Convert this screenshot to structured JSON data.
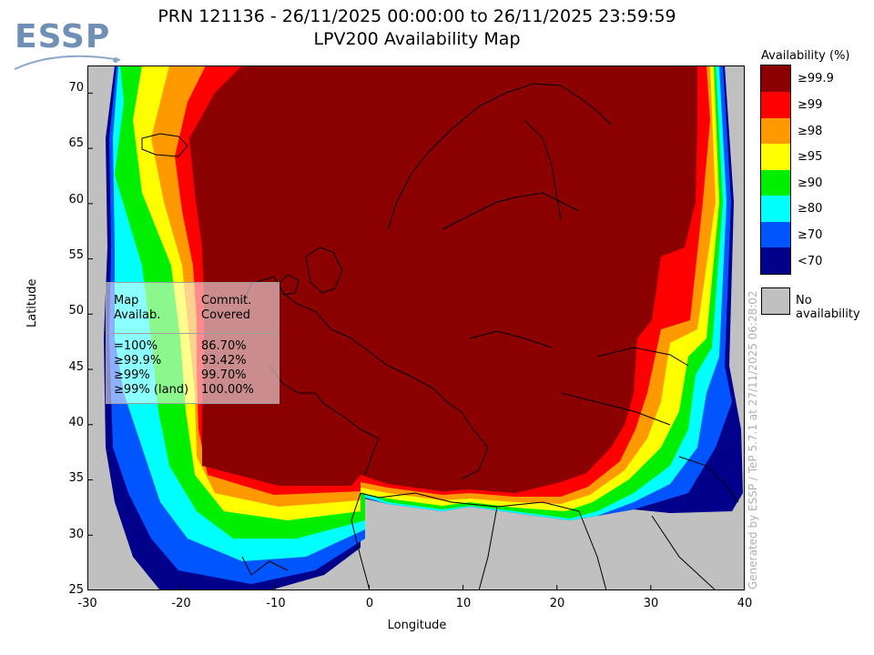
{
  "title": "PRN 121136 - 26/11/2025 00:00:00 to 26/11/2025 23:59:59",
  "subtitle": "LPV200 Availability Map",
  "logo": "ESSP",
  "axes": {
    "xlabel": "Longitude",
    "ylabel": "Latitude",
    "xticks": [
      "-30",
      "-20",
      "-10",
      "0",
      "10",
      "20",
      "30",
      "40"
    ],
    "yticks": [
      "70",
      "65",
      "60",
      "55",
      "50",
      "45",
      "40",
      "35",
      "30",
      "25"
    ],
    "xlim": [
      -30,
      40
    ],
    "ylim": [
      25,
      72.5
    ]
  },
  "legend": {
    "title": "Availability (%)",
    "items": [
      {
        "label": "≥99.9",
        "color": "#8b0000"
      },
      {
        "label": "≥99",
        "color": "#ff0000"
      },
      {
        "label": "≥98",
        "color": "#ff9900"
      },
      {
        "label": "≥95",
        "color": "#ffff00"
      },
      {
        "label": "≥90",
        "color": "#00ee00"
      },
      {
        "label": "≥80",
        "color": "#00ffff"
      },
      {
        "label": "≥70",
        "color": "#0055ff"
      },
      {
        "label": "<70",
        "color": "#00008b"
      }
    ],
    "no_availability": {
      "label": "No availability",
      "color": "#c0c0c0"
    }
  },
  "stats": {
    "col1_header": [
      "Map",
      "Availab."
    ],
    "col2_header": [
      "Commit.",
      "Covered"
    ],
    "rows": [
      {
        "avail": "=100%",
        "covered": "86.70%"
      },
      {
        "avail": "≥99.9%",
        "covered": "93.42%"
      },
      {
        "avail": "≥99%",
        "covered": "99.70%"
      },
      {
        "avail": "≥99% (land)",
        "covered": "100.00%"
      }
    ]
  },
  "generated_text": "Generated by ESSP / TeP 5.7.1 at 27/11/2025 06:28:02"
}
